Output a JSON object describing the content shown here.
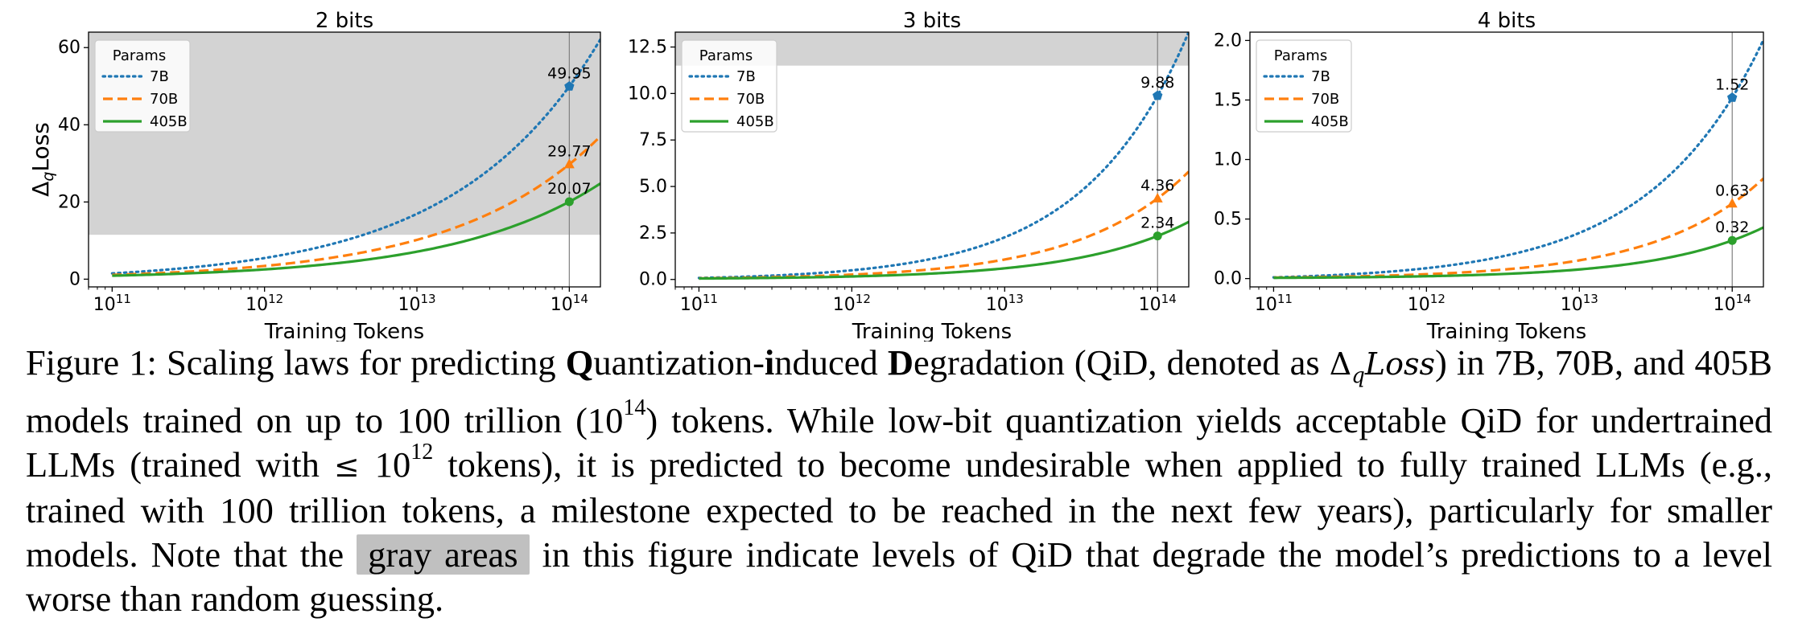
{
  "figure": {
    "xlabel": "Training Tokens",
    "ylabel_main": "Δ",
    "ylabel_sub": "q",
    "ylabel_tail": "Loss",
    "xticks": [
      {
        "value": 100000000000.0,
        "base": "10",
        "exp": "11"
      },
      {
        "value": 1000000000000.0,
        "base": "10",
        "exp": "12"
      },
      {
        "value": 10000000000000.0,
        "base": "10",
        "exp": "13"
      },
      {
        "value": 100000000000000.0,
        "base": "10",
        "exp": "14"
      }
    ],
    "vline_x": 100000000000000.0,
    "legend_title": "Params",
    "legend_loc": "upper-left",
    "colors": {
      "7B": "#1f77b4",
      "70B": "#ff7f0e",
      "405B": "#2ca02c",
      "gray_area": "#d3d3d3"
    }
  },
  "chart_data": [
    {
      "type": "line",
      "title": "2 bits",
      "xscale": "log",
      "xlim": [
        70000000000.0,
        160000000000000.0
      ],
      "ylim": [
        -2,
        64
      ],
      "yticks": [
        0,
        20,
        40,
        60
      ],
      "ytick_labels": [
        "0",
        "20",
        "40",
        "60"
      ],
      "gray_area_from": 11.5,
      "series": [
        {
          "name": "7B",
          "style": "dotted",
          "start_value": 1.5,
          "value_at_1e14": 49.95,
          "end_value": 62,
          "label": "49.95"
        },
        {
          "name": "70B",
          "style": "dashed",
          "start_value": 1.1,
          "value_at_1e14": 29.77,
          "end_value": 37,
          "label": "29.77"
        },
        {
          "name": "405B",
          "style": "solid",
          "start_value": 0.9,
          "value_at_1e14": 20.07,
          "end_value": 24.8,
          "label": "20.07"
        }
      ]
    },
    {
      "type": "line",
      "title": "3 bits",
      "xscale": "log",
      "xlim": [
        70000000000.0,
        160000000000000.0
      ],
      "ylim": [
        -0.4,
        13.3
      ],
      "yticks": [
        0,
        2.5,
        5,
        7.5,
        10,
        12.5
      ],
      "ytick_labels": [
        "0.0",
        "2.5",
        "5.0",
        "7.5",
        "10.0",
        "12.5"
      ],
      "gray_area_from": 11.5,
      "series": [
        {
          "name": "7B",
          "style": "dotted",
          "start_value": 0.08,
          "value_at_1e14": 9.88,
          "end_value": 13.3,
          "label": "9.88"
        },
        {
          "name": "70B",
          "style": "dashed",
          "start_value": 0.06,
          "value_at_1e14": 4.36,
          "end_value": 5.8,
          "label": "4.36"
        },
        {
          "name": "405B",
          "style": "solid",
          "start_value": 0.05,
          "value_at_1e14": 2.34,
          "end_value": 3.1,
          "label": "2.34"
        }
      ]
    },
    {
      "type": "line",
      "title": "4 bits",
      "xscale": "log",
      "xlim": [
        70000000000.0,
        160000000000000.0
      ],
      "ylim": [
        -0.07,
        2.07
      ],
      "yticks": [
        0,
        0.5,
        1,
        1.5,
        2
      ],
      "ytick_labels": [
        "0.0",
        "0.5",
        "1.0",
        "1.5",
        "2.0"
      ],
      "gray_area_from": null,
      "series": [
        {
          "name": "7B",
          "style": "dotted",
          "start_value": 0.01,
          "value_at_1e14": 1.52,
          "end_value": 2.0,
          "label": "1.52"
        },
        {
          "name": "70B",
          "style": "dashed",
          "start_value": 0.008,
          "value_at_1e14": 0.63,
          "end_value": 0.84,
          "label": "0.63"
        },
        {
          "name": "405B",
          "style": "solid",
          "start_value": 0.006,
          "value_at_1e14": 0.32,
          "end_value": 0.43,
          "label": "0.32"
        }
      ]
    }
  ],
  "caption": {
    "lead": "Figure 1:  Scaling laws for predicting ",
    "q_bold": "Q",
    "q_rest": "uantization-",
    "i_bold": "i",
    "i_rest": "nduced ",
    "d_bold": "D",
    "d_rest": "egradation (QiD, denoted as ",
    "math_delta": "Δ",
    "math_q": "q",
    "math_loss": "Loss",
    "part2": ") in 7B, 70B, and 405B models trained on up to 100 trillion (",
    "pow_base": "10",
    "pow_exp": "14",
    "part3": ") tokens. While low-bit quantization yields acceptable QiD for undertrained LLMs (trained with ",
    "leq": "≤ ",
    "pow2_base": "10",
    "pow2_exp": "12",
    "part4": " tokens), it is predicted to become undesirable when applied to fully trained LLMs (e.g., trained with 100 trillion tokens, a milestone expected to be reached in the next few years), particularly for smaller models. Note that the ",
    "highlight": "gray areas",
    "part5": " in this figure indicate levels of QiD that degrade the model’s predictions to a level worse than random guessing."
  }
}
